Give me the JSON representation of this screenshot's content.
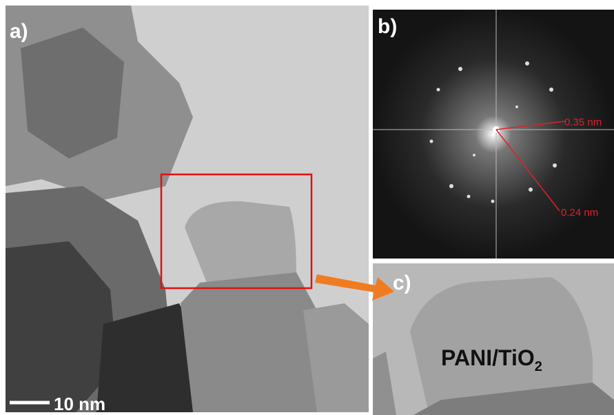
{
  "panels": {
    "a": {
      "label": "a)",
      "scale_bar": "10 nm"
    },
    "b": {
      "label": "b)",
      "spacing_1": "0.35 nm",
      "spacing_2": "0.24 nm"
    },
    "c": {
      "label": "c)",
      "sample": {
        "text": "PANI/TiO",
        "subscript": "2"
      }
    }
  }
}
